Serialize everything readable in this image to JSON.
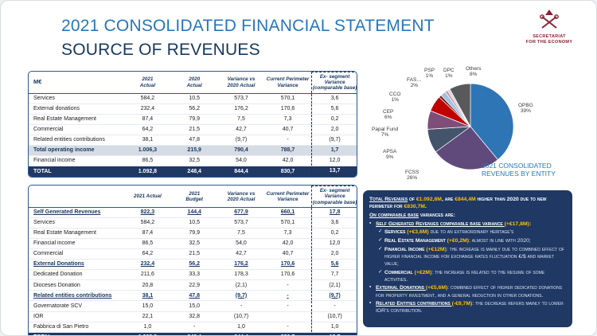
{
  "header": {
    "title_line1": "2021 CONSOLIDATED FINANCIAL STATEMENT",
    "title_line2": "SOURCE OF REVENUES",
    "logo_caption": "SECRETARIAT\nFOR THE ECONOMY"
  },
  "table1": {
    "corner_label": "M€",
    "columns": [
      "2021\nActual",
      "2020\nActual",
      "Variance vs\n2020 Actual",
      "Current Perimeter\nVariance",
      "Ex- segment Variance\n(comparable base)"
    ],
    "rows": [
      {
        "label": "Services",
        "values": [
          "584,2",
          "10,5",
          "573,7",
          "570,1",
          "3,6"
        ],
        "style": "normal"
      },
      {
        "label": "External donations",
        "values": [
          "232,4",
          "56,2",
          "176,2",
          "170,6",
          "5,6"
        ],
        "style": "normal"
      },
      {
        "label": "Real Estate Management",
        "values": [
          "87,4",
          "79,9",
          "7,5",
          "7,3",
          "0,2"
        ],
        "style": "normal"
      },
      {
        "label": "Commercial",
        "values": [
          "64,2",
          "21,5",
          "42,7",
          "40,7",
          "2,0"
        ],
        "style": "normal"
      },
      {
        "label": "Related entities contributions",
        "values": [
          "38,1",
          "47,8",
          "(9,7)",
          "-",
          "(9,7)"
        ],
        "style": "normal"
      },
      {
        "label": "Total operating income",
        "values": [
          "1.006,3",
          "215,9",
          "790,4",
          "788,7",
          "1,7"
        ],
        "style": "subtotal"
      },
      {
        "label": "Financial income",
        "values": [
          "86,5",
          "32,5",
          "54,0",
          "42,0",
          "12,0"
        ],
        "style": "normal"
      },
      {
        "label": "TOTAL",
        "values": [
          "1.092,8",
          "248,4",
          "844,4",
          "830,7",
          "13,7"
        ],
        "style": "total"
      }
    ]
  },
  "table2": {
    "corner_label": "",
    "columns": [
      "2021 Actual",
      "2021\nBudget",
      "Variance vs\n2020 Actual",
      "Current Perimeter\nVariance",
      "Ex- segment Variance\n(comparable base)"
    ],
    "rows": [
      {
        "label": "Self Generated Revenues",
        "values": [
          "822,3",
          "144,4",
          "677,9",
          "660,1",
          "17,8"
        ],
        "style": "section"
      },
      {
        "label": "Services",
        "values": [
          "584,2",
          "10,5",
          "573,7",
          "570,1",
          "3,6"
        ],
        "style": "normal"
      },
      {
        "label": "Real Estate Management",
        "values": [
          "87,4",
          "79,9",
          "7,5",
          "7,3",
          "0,2"
        ],
        "style": "normal"
      },
      {
        "label": "Financial income",
        "values": [
          "86,5",
          "32,5",
          "54,0",
          "42,0",
          "12,0"
        ],
        "style": "normal"
      },
      {
        "label": "Commercial",
        "values": [
          "64,2",
          "21,5",
          "42,7",
          "40,7",
          "2,0"
        ],
        "style": "normal"
      },
      {
        "label": "External Donations",
        "values": [
          "232,4",
          "56,2",
          "176,2",
          "170,6",
          "5,6"
        ],
        "style": "section"
      },
      {
        "label": "Dedicated Donation",
        "values": [
          "211,6",
          "33,3",
          "178,3",
          "170,6",
          "7,7"
        ],
        "style": "normal"
      },
      {
        "label": "Dioceses Donation",
        "values": [
          "20,8",
          "22,9",
          "(2,1)",
          "-",
          "(2,1)"
        ],
        "style": "normal"
      },
      {
        "label": "Related entities contributions",
        "values": [
          "38,1",
          "47,8",
          "(9,7)",
          "-",
          "(9,7)"
        ],
        "style": "section"
      },
      {
        "label": "Governatorate SCV",
        "values": [
          "15,0",
          "15,0",
          "-",
          "-",
          "-"
        ],
        "style": "normal"
      },
      {
        "label": "IOR",
        "values": [
          "22,1",
          "32,8",
          "(10,7)",
          "",
          "(10,7)"
        ],
        "style": "normal"
      },
      {
        "label": "Fabbrica di San Pietro",
        "values": [
          "1,0",
          "-",
          "1,0",
          "-",
          "1,0"
        ],
        "style": "normal"
      },
      {
        "label": "TOTAL",
        "values": [
          "1.092,8",
          "248,4",
          "844,4",
          "830,7",
          "13,7"
        ],
        "style": "total"
      }
    ]
  },
  "chart_data": {
    "type": "pie",
    "title": "2021 CONSOLIDATED REVENUES BY ENTITY",
    "caption": "2021 CONSOLIDATED\nREVENUES BY ENTITY",
    "labels": [
      "OPBG",
      "FCSS",
      "APSA",
      "Papal Fund",
      "CEP",
      "CCO",
      "FAS…",
      "PSP",
      "DPC",
      "Others"
    ],
    "values": [
      39,
      26,
      9,
      7,
      6,
      1,
      2,
      1,
      1,
      8
    ],
    "colors": [
      "#2E75B6",
      "#604A7B",
      "#44546A",
      "#7E4E79",
      "#C00000",
      "#7F2020",
      "#9DC3E6",
      "#D99694",
      "#C5D9F1",
      "#595959"
    ],
    "legend_position": "around",
    "unit": "%"
  },
  "commentary": {
    "lines": [
      {
        "level": 0,
        "marker": "",
        "segments": [
          {
            "t": "Total Revenues",
            "s": "u"
          },
          {
            "t": " of ",
            "s": "b"
          },
          {
            "t": "€1.092,8M",
            "s": "y"
          },
          {
            "t": ", are ",
            "s": "b"
          },
          {
            "t": "€844,4M",
            "s": "y"
          },
          {
            "t": " higher than 2020 due to new perimeter for ",
            "s": "b"
          },
          {
            "t": "€830,7M",
            "s": "y"
          },
          {
            "t": ".",
            "s": "b"
          }
        ]
      },
      {
        "level": 0,
        "marker": "",
        "segments": [
          {
            "t": "On comparable base",
            "s": "u"
          },
          {
            "t": " variances are:",
            "s": "b"
          }
        ]
      },
      {
        "level": 1,
        "marker": "▪",
        "segments": [
          {
            "t": "Self Generated Revenues comparable base variance ",
            "s": "u"
          },
          {
            "t": "(+€17,8M)",
            "s": "y"
          },
          {
            "t": ":",
            "s": "b"
          }
        ]
      },
      {
        "level": 2,
        "marker": "✓",
        "segments": [
          {
            "t": "Services ",
            "s": "b"
          },
          {
            "t": "(+€3,6M)",
            "s": "y"
          },
          {
            "t": " due to an extraordinary heritage's",
            "s": "n"
          }
        ]
      },
      {
        "level": 2,
        "marker": "✓",
        "segments": [
          {
            "t": "Real Estate Management ",
            "s": "b"
          },
          {
            "t": "(+€0,2M)",
            "s": "y"
          },
          {
            "t": ": almost in line with 2020;",
            "s": "n"
          }
        ]
      },
      {
        "level": 2,
        "marker": "✓",
        "segments": [
          {
            "t": "Financial Income ",
            "s": "b"
          },
          {
            "t": "(+€12M)",
            "s": "y"
          },
          {
            "t": ": the increase is mainly due to combined effect of higher financial income for exchange rates fluctuation €/$ and market value;",
            "s": "n"
          }
        ]
      },
      {
        "level": 2,
        "marker": "✓",
        "segments": [
          {
            "t": "Commercial ",
            "s": "b"
          },
          {
            "t": "(+€2M)",
            "s": "y"
          },
          {
            "t": ": the increase is related to the resume of some activities.",
            "s": "n"
          }
        ]
      },
      {
        "level": 1,
        "marker": "▪",
        "segments": [
          {
            "t": "External Donations ",
            "s": "u"
          },
          {
            "t": "(+€5,6M)",
            "s": "y"
          },
          {
            "t": ": combined effect of higher dedicated donations for property investment, and a general reduction in other donations.",
            "s": "n"
          }
        ]
      },
      {
        "level": 1,
        "marker": "▪",
        "segments": [
          {
            "t": "Related Entities contributions ",
            "s": "u"
          },
          {
            "t": "(-€9,7M)",
            "s": "y"
          },
          {
            "t": ": the decrease refers mainly to lower IOR's contribution.",
            "s": "n"
          }
        ]
      }
    ]
  }
}
